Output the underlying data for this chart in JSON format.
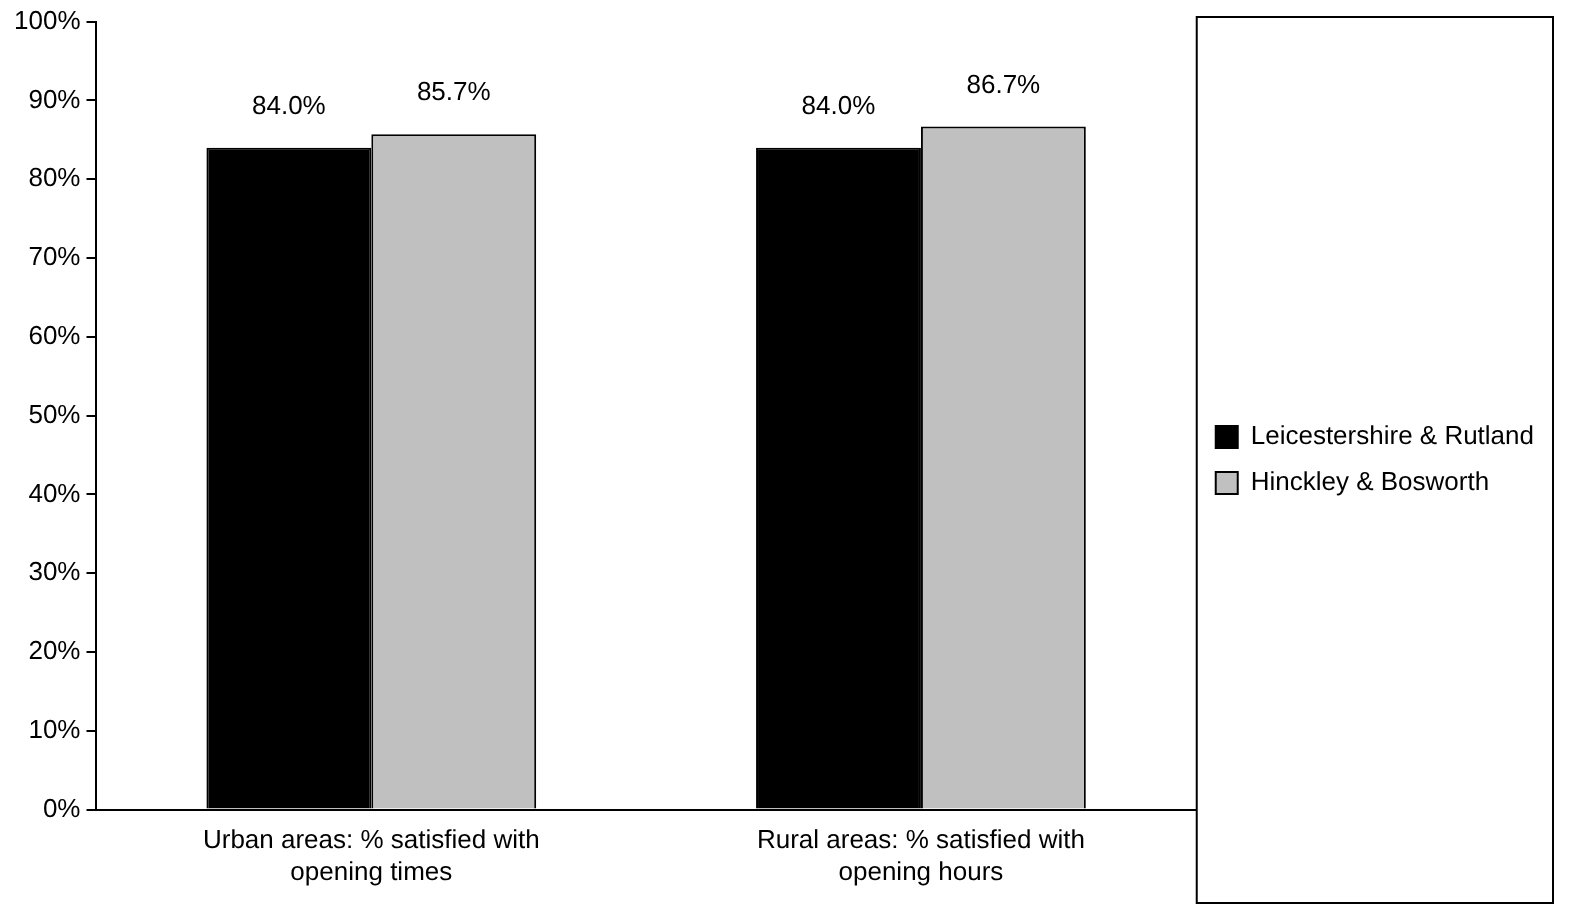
{
  "chart_data": {
    "type": "bar",
    "categories": [
      "Urban areas: % satisfied with opening times",
      "Rural areas: % satisfied with opening hours"
    ],
    "series": [
      {
        "name": "Leicestershire & Rutland",
        "color": "#000000",
        "values": [
          84.0,
          84.0
        ],
        "value_labels": [
          "84.0%",
          "84.0%"
        ]
      },
      {
        "name": "Hinckley & Bosworth",
        "color": "#c0c0c0",
        "values": [
          85.7,
          86.7
        ],
        "value_labels": [
          "85.7%",
          "86.7%"
        ]
      }
    ],
    "ylim": [
      0,
      100
    ],
    "yticks": [
      {
        "value": 0,
        "label": "0%"
      },
      {
        "value": 10,
        "label": "10%"
      },
      {
        "value": 20,
        "label": "20%"
      },
      {
        "value": 30,
        "label": "30%"
      },
      {
        "value": 40,
        "label": "40%"
      },
      {
        "value": 50,
        "label": "50%"
      },
      {
        "value": 60,
        "label": "60%"
      },
      {
        "value": 70,
        "label": "70%"
      },
      {
        "value": 80,
        "label": "80%"
      },
      {
        "value": 90,
        "label": "90%"
      },
      {
        "value": 100,
        "label": "100%"
      }
    ],
    "grid": false,
    "legend": "right"
  }
}
